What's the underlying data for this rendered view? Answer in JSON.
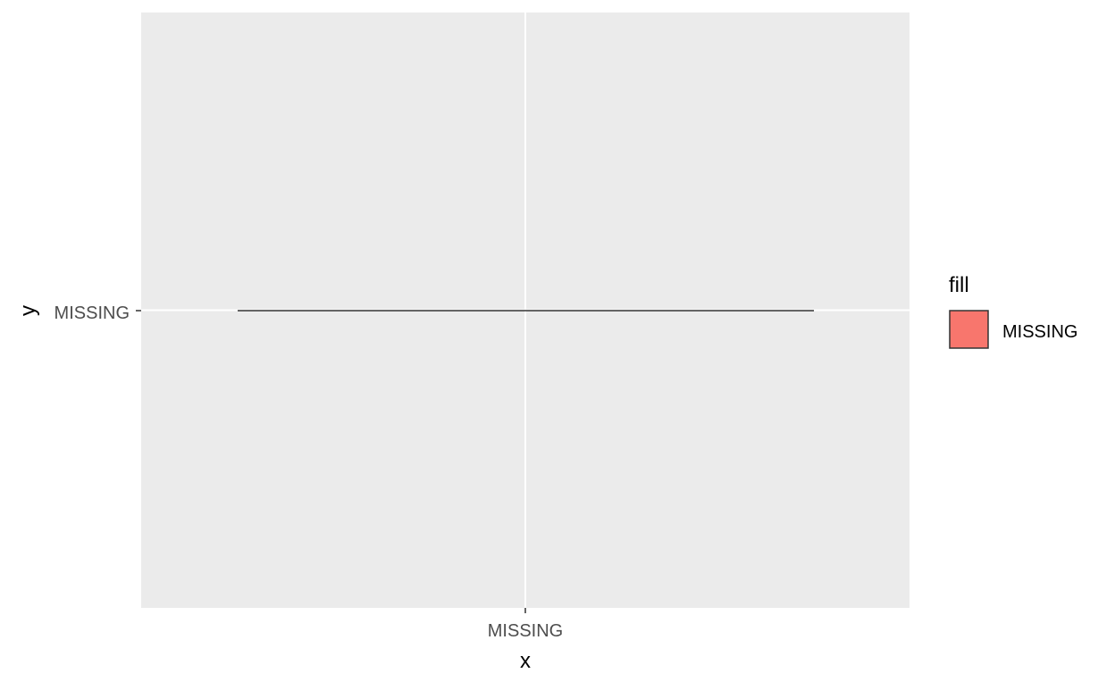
{
  "chart_data": {
    "type": "bar",
    "categories": [
      "MISSING"
    ],
    "y_categories": [
      "MISSING"
    ],
    "xlabel": "x",
    "ylabel": "y",
    "legend": {
      "title": "fill",
      "position": "right",
      "entries": [
        {
          "label": "MISSING",
          "color": "#F8766D"
        }
      ]
    },
    "grid": true,
    "colors": {
      "panel_background": "#EBEBEB",
      "gridline": "#FFFFFF",
      "bar_outline": "#333333",
      "fill": "#F8766D",
      "tick_text": "#4D4D4D",
      "axis_title": "#000000"
    }
  }
}
